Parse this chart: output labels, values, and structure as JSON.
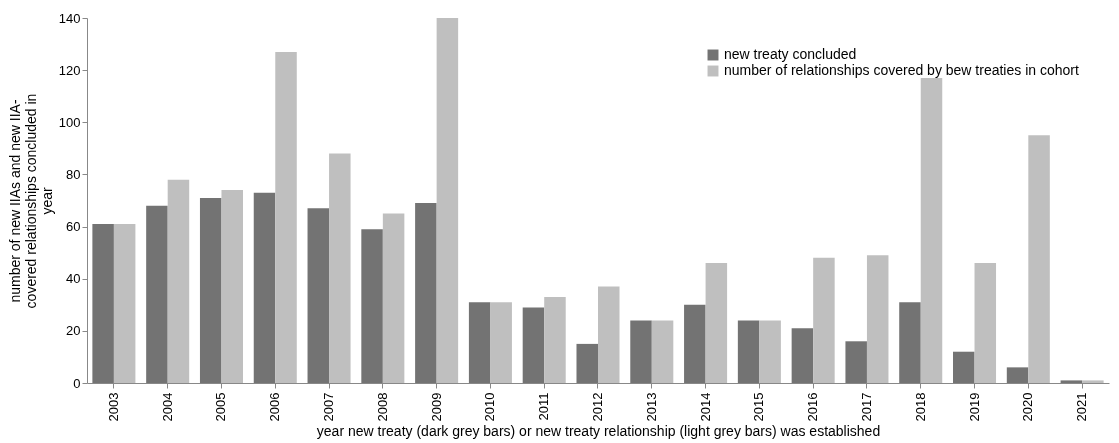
{
  "chart_data": {
    "type": "bar",
    "xlabel": "year new treaty (dark grey bars) or new treaty relationship (light grey bars) was established",
    "ylabel": "number of new IIAs and new IIA-covered relationships concluded in year",
    "categories": [
      "2003",
      "2004",
      "2005",
      "2006",
      "2007",
      "2008",
      "2009",
      "2010",
      "2011",
      "2012",
      "2013",
      "2014",
      "2015",
      "2016",
      "2017",
      "2018",
      "2019",
      "2020",
      "2021"
    ],
    "series": [
      {
        "name": "new treaty concluded",
        "color": "#737373",
        "values": [
          61,
          68,
          71,
          73,
          67,
          59,
          69,
          31,
          29,
          15,
          24,
          30,
          24,
          21,
          16,
          31,
          12,
          6,
          1
        ]
      },
      {
        "name": "number of relationships covered by bew treaties in cohort",
        "color": "#bfbfbf",
        "values": [
          61,
          78,
          74,
          127,
          88,
          65,
          140,
          31,
          33,
          37,
          24,
          46,
          24,
          48,
          49,
          117,
          46,
          95,
          1
        ]
      }
    ],
    "ylim": [
      0,
      140
    ],
    "yticks": [
      0,
      20,
      40,
      60,
      80,
      100,
      120,
      140
    ],
    "grid": false,
    "legend": "top right"
  }
}
